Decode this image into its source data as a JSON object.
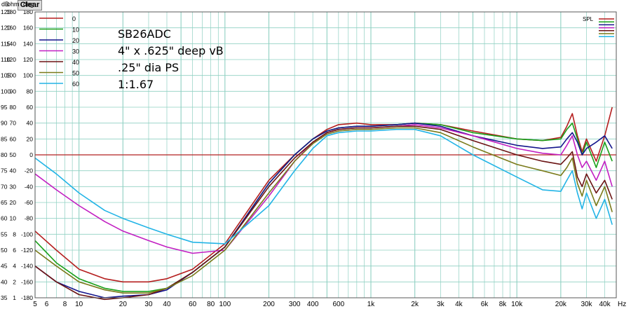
{
  "toolbar": {
    "clear_label": "Clear"
  },
  "axis_headers": {
    "db": "dB",
    "ohm": "ohm",
    "deg": "deg"
  },
  "annotation_lines": [
    "SB26ADC",
    "4\" x .625\" deep   vB",
    ".25\" dia PS",
    "1:1.67"
  ],
  "colors": {
    "background": "#ffffff",
    "grid": "#8fd0c2",
    "reference": "#b22222"
  },
  "chart_data": {
    "type": "line",
    "x_scale": "log",
    "xlim": [
      5,
      48000
    ],
    "x_unit": "Hz",
    "x_ticks": [
      5,
      6,
      8,
      10,
      20,
      30,
      40,
      60,
      80,
      100,
      200,
      300,
      400,
      600,
      1000,
      2000,
      3000,
      4000,
      6000,
      8000,
      10000,
      20000,
      30000,
      40000
    ],
    "x_tick_labels": [
      "5",
      "6",
      "8",
      "10",
      "20",
      "30",
      "40",
      "60",
      "80",
      "100",
      "200",
      "300",
      "400",
      "600",
      "1k",
      "2k",
      "3k",
      "4k",
      "6k",
      "8k",
      "10k",
      "20k",
      "30k",
      "40k"
    ],
    "y_unit_labels": [
      "dB",
      "ohm",
      "deg"
    ],
    "ylim": [
      35,
      125
    ],
    "y_ticks_db": [
      125,
      120,
      115,
      110,
      105,
      100,
      95,
      90,
      85,
      80,
      75,
      70,
      65,
      60,
      55,
      50,
      45,
      40,
      35
    ],
    "y_ticks_ohm": [
      180,
      160,
      140,
      120,
      100,
      90,
      80,
      70,
      60,
      50,
      40,
      30,
      20,
      10,
      8,
      6,
      4,
      2,
      1
    ],
    "y_ticks_deg": [
      180,
      160,
      140,
      120,
      100,
      80,
      60,
      40,
      20,
      0,
      -20,
      -40,
      -60,
      -80,
      -100,
      -120,
      -140,
      -160,
      -180
    ],
    "reference_line_db": 80,
    "grid": true,
    "legend_position": "top-left",
    "spl_legend_label": "SPL",
    "series": [
      {
        "name": "0",
        "color": "#b51f1f",
        "x": [
          5,
          7,
          10,
          15,
          20,
          30,
          40,
          60,
          100,
          200,
          300,
          400,
          500,
          600,
          800,
          1000,
          1500,
          2000,
          3000,
          5000,
          10000,
          15000,
          20000,
          22000,
          24000,
          26000,
          28000,
          30000,
          35000,
          40000,
          45000
        ],
        "y": [
          56,
          50,
          44,
          41,
          40,
          40,
          41,
          44,
          52,
          72,
          80,
          85,
          88,
          89.5,
          90,
          89.5,
          89.5,
          90,
          89.5,
          87.5,
          85,
          84.5,
          85.5,
          89,
          93,
          86,
          81,
          85,
          78,
          86,
          95
        ]
      },
      {
        "name": "10",
        "color": "#1aa01a",
        "x": [
          5,
          7,
          10,
          15,
          20,
          30,
          40,
          60,
          100,
          200,
          300,
          400,
          500,
          600,
          800,
          1000,
          1500,
          2000,
          3000,
          5000,
          10000,
          15000,
          20000,
          22000,
          24000,
          26000,
          28000,
          30000,
          35000,
          40000,
          45000
        ],
        "y": [
          53,
          46,
          41,
          38,
          37,
          37,
          38,
          43,
          51,
          71,
          80,
          85,
          87.5,
          88.5,
          89,
          89,
          89.5,
          90,
          89.5,
          87,
          85,
          84.5,
          85,
          88,
          90,
          85,
          80,
          84,
          76,
          84,
          78
        ]
      },
      {
        "name": "20",
        "color": "#14148c",
        "x": [
          5,
          7,
          10,
          15,
          20,
          30,
          40,
          60,
          100,
          200,
          300,
          400,
          500,
          600,
          800,
          1000,
          1500,
          2000,
          3000,
          5000,
          10000,
          15000,
          20000,
          22000,
          24000,
          26000,
          28000,
          30000,
          35000,
          40000,
          45000
        ],
        "y": [
          45,
          40,
          37,
          35,
          35.5,
          36,
          37.5,
          43,
          51,
          71,
          80,
          85,
          87.5,
          88.5,
          89,
          89,
          89.5,
          90,
          89,
          86,
          83,
          82,
          82.5,
          85,
          87,
          84,
          80,
          82,
          84,
          86,
          82
        ]
      },
      {
        "name": "30",
        "color": "#c21fc2",
        "x": [
          5,
          7,
          10,
          15,
          20,
          30,
          40,
          60,
          100,
          200,
          300,
          400,
          500,
          600,
          800,
          1000,
          1500,
          2000,
          3000,
          5000,
          10000,
          15000,
          20000,
          22000,
          24000,
          26000,
          28000,
          30000,
          35000,
          40000,
          45000
        ],
        "y": [
          74,
          69,
          64,
          59,
          56,
          53,
          51,
          49,
          50,
          67,
          78,
          84,
          87,
          88,
          88.5,
          88.5,
          89,
          89.5,
          88.5,
          86,
          82,
          80.5,
          80,
          83,
          86,
          80,
          76,
          78,
          72,
          78,
          70
        ]
      },
      {
        "name": "40",
        "color": "#6b1414",
        "x": [
          5,
          7,
          10,
          15,
          20,
          30,
          40,
          60,
          100,
          200,
          300,
          400,
          500,
          600,
          800,
          1000,
          1500,
          2000,
          3000,
          5000,
          10000,
          15000,
          20000,
          22000,
          24000,
          26000,
          28000,
          30000,
          35000,
          40000,
          45000
        ],
        "y": [
          45,
          40,
          36,
          34.5,
          35,
          36,
          38,
          43,
          51,
          70,
          79,
          84,
          87,
          88,
          88.5,
          88.5,
          89,
          89,
          88,
          84.5,
          80,
          78,
          77,
          79,
          81,
          73,
          70,
          74,
          68,
          72,
          66
        ]
      },
      {
        "name": "50",
        "color": "#7a7a1a",
        "x": [
          5,
          7,
          10,
          15,
          20,
          30,
          40,
          60,
          100,
          200,
          300,
          400,
          500,
          600,
          800,
          1000,
          1500,
          2000,
          3000,
          5000,
          10000,
          15000,
          20000,
          22000,
          24000,
          26000,
          28000,
          30000,
          35000,
          40000,
          45000
        ],
        "y": [
          50,
          45,
          40,
          37.5,
          36.5,
          36.5,
          38,
          42,
          50,
          68,
          78,
          83.5,
          86.5,
          87.5,
          88,
          88,
          88.5,
          88.5,
          87,
          82.5,
          77,
          75,
          73.5,
          76,
          79,
          71,
          67,
          72,
          64,
          70,
          62
        ]
      },
      {
        "name": "60",
        "color": "#22b4e6",
        "x": [
          5,
          7,
          10,
          15,
          20,
          30,
          40,
          60,
          100,
          200,
          300,
          400,
          500,
          600,
          800,
          1000,
          1500,
          2000,
          3000,
          5000,
          10000,
          15000,
          20000,
          22000,
          24000,
          26000,
          28000,
          30000,
          35000,
          40000,
          45000
        ],
        "y": [
          79,
          74,
          68,
          62.5,
          60,
          57,
          55,
          52.5,
          52,
          64,
          75,
          82,
          86,
          87,
          87.5,
          87.5,
          88,
          88,
          86,
          80,
          73,
          69,
          68.5,
          72,
          75,
          68,
          63,
          68,
          60,
          66,
          58
        ]
      }
    ]
  }
}
